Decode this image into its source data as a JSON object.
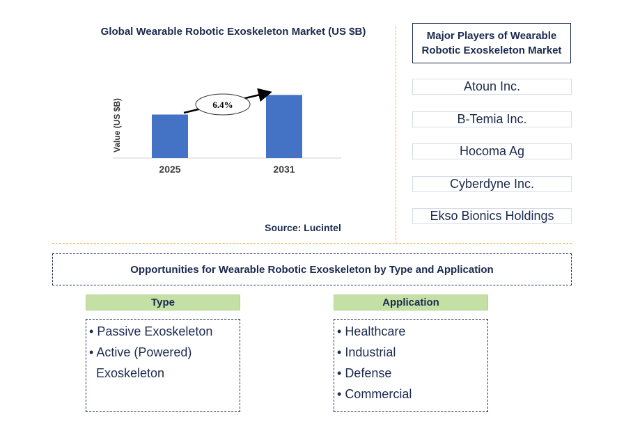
{
  "chart_data": {
    "type": "bar",
    "title": "Global Wearable Robotic Exoskeleton Market (US $B)",
    "categories": [
      "2025",
      "2031"
    ],
    "values": [
      1.0,
      1.45
    ],
    "ylabel": "Value (US $B)",
    "xlabel": "",
    "ylim": [
      0,
      1.6
    ],
    "grid": false,
    "bar_color": "#4472c4",
    "annotation": "6.4%",
    "source": "Source: Lucintel"
  },
  "players": {
    "header": "Major Players of Wearable Robotic Exoskeleton Market",
    "items": [
      "Atoun Inc.",
      "B-Temia Inc.",
      "Hocoma Ag",
      "Cyberdyne Inc.",
      "Ekso Bionics Holdings"
    ]
  },
  "opportunities": {
    "title": "Opportunities for Wearable Robotic Exoskeleton by Type and Application",
    "type": {
      "header": "Type",
      "items": [
        "Passive Exoskeleton",
        "Active (Powered)",
        "Exoskeleton"
      ]
    },
    "application": {
      "header": "Application",
      "items": [
        "Healthcare",
        "Industrial",
        "Defense",
        "Commercial"
      ]
    }
  }
}
